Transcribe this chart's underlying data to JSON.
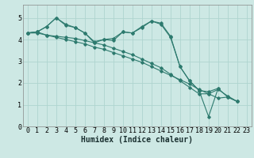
{
  "xlabel": "Humidex (Indice chaleur)",
  "bg_color": "#cde8e4",
  "grid_color": "#aed4cf",
  "line_color": "#2d7a6e",
  "xlim": [
    -0.5,
    23.5
  ],
  "ylim": [
    0,
    5.6
  ],
  "yticks": [
    0,
    1,
    2,
    3,
    4,
    5
  ],
  "xticks": [
    0,
    1,
    2,
    3,
    4,
    5,
    6,
    7,
    8,
    9,
    10,
    11,
    12,
    13,
    14,
    15,
    16,
    17,
    18,
    19,
    20,
    21,
    22,
    23
  ],
  "series": [
    [
      4.3,
      4.35,
      4.2,
      4.15,
      4.1,
      4.05,
      3.95,
      3.85,
      3.75,
      3.6,
      3.45,
      3.3,
      3.1,
      2.9,
      2.7,
      2.4,
      2.1,
      1.8,
      1.5,
      1.5,
      1.7,
      1.4,
      1.15
    ],
    [
      4.3,
      4.35,
      4.6,
      5.0,
      4.7,
      4.55,
      4.3,
      3.85,
      4.0,
      3.95,
      4.35,
      4.3,
      4.55,
      4.85,
      4.75,
      4.15,
      2.75,
      2.1,
      1.65,
      1.6,
      1.75,
      null,
      null
    ],
    [
      4.3,
      4.35,
      4.6,
      5.0,
      4.65,
      4.55,
      4.3,
      3.9,
      4.0,
      4.05,
      4.35,
      4.3,
      4.6,
      4.85,
      4.7,
      4.1,
      2.75,
      2.1,
      1.65,
      0.45,
      1.75,
      1.35,
      1.15
    ],
    [
      4.3,
      4.3,
      4.2,
      4.1,
      4.0,
      3.9,
      3.8,
      3.65,
      3.55,
      3.4,
      3.25,
      3.1,
      2.95,
      2.75,
      2.55,
      2.35,
      2.15,
      1.95,
      1.7,
      1.5,
      1.3,
      1.35,
      1.15
    ]
  ],
  "tick_fontsize": 6.0,
  "xlabel_fontsize": 7.0
}
